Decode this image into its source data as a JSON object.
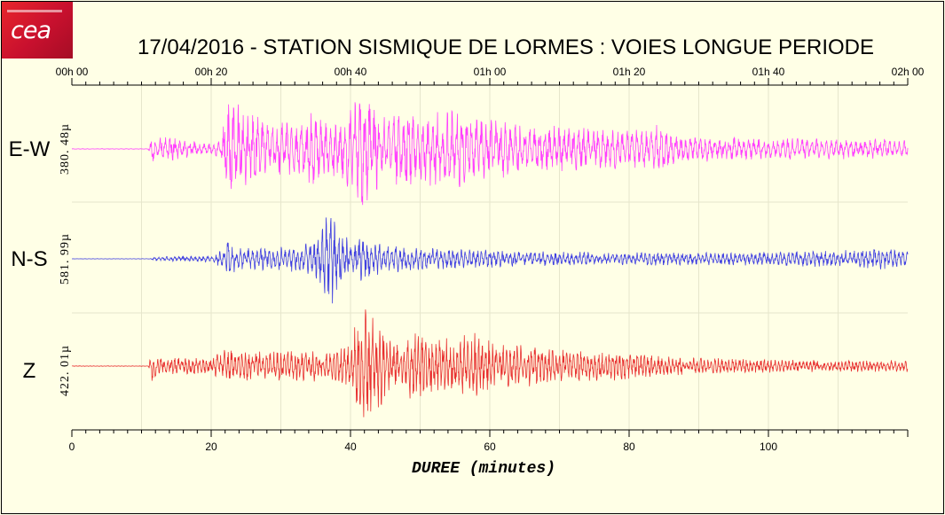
{
  "title": "17/04/2016  -  STATION SISMIQUE DE LORMES : VOIES LONGUE PERIODE",
  "logo": {
    "text": "cea",
    "icon": "cea-logo"
  },
  "colors": {
    "ew": "#ff40ff",
    "ns": "#4040e0",
    "z": "#e83030",
    "background": "#ffffe6",
    "grid": "#e6e6cc"
  },
  "chart_data": {
    "type": "line",
    "title": "17/04/2016  -  STATION SISMIQUE DE LORMES : VOIES LONGUE PERIODE",
    "xlabel": "DUREE (minutes)",
    "xlim": [
      0,
      120
    ],
    "x_bottom_ticks": [
      {
        "value": 0,
        "label": "0"
      },
      {
        "value": 20,
        "label": "20"
      },
      {
        "value": 40,
        "label": "40"
      },
      {
        "value": 60,
        "label": "60"
      },
      {
        "value": 80,
        "label": "80"
      },
      {
        "value": 100,
        "label": "100"
      }
    ],
    "x_top_ticks": [
      {
        "value": 0,
        "label": "00h 00"
      },
      {
        "value": 20,
        "label": "00h 20"
      },
      {
        "value": 40,
        "label": "00h 40"
      },
      {
        "value": 60,
        "label": "01h 00"
      },
      {
        "value": 80,
        "label": "01h 20"
      },
      {
        "value": 100,
        "label": "01h 40"
      },
      {
        "value": 120,
        "label": "02h 00"
      }
    ],
    "grid": true,
    "series": [
      {
        "name": "E-W",
        "amplitude_label": "380. 48µ",
        "color": "#ff40ff",
        "envelope": [
          [
            0,
            0.005
          ],
          [
            11,
            0.005
          ],
          [
            11.5,
            0.3
          ],
          [
            12,
            0.2
          ],
          [
            14,
            0.25
          ],
          [
            16,
            0.18
          ],
          [
            20,
            0.1
          ],
          [
            21.5,
            0.2
          ],
          [
            22,
            0.7
          ],
          [
            23,
            1.0
          ],
          [
            25,
            0.75
          ],
          [
            28,
            0.55
          ],
          [
            32,
            0.5
          ],
          [
            34,
            0.7
          ],
          [
            37,
            0.6
          ],
          [
            39,
            0.7
          ],
          [
            40.5,
            0.9
          ],
          [
            41.5,
            1.3
          ],
          [
            43,
            1.0
          ],
          [
            45,
            0.6
          ],
          [
            48,
            0.8
          ],
          [
            50,
            0.7
          ],
          [
            55,
            0.75
          ],
          [
            58,
            0.6
          ],
          [
            62,
            0.55
          ],
          [
            66,
            0.5
          ],
          [
            70,
            0.45
          ],
          [
            75,
            0.4
          ],
          [
            80,
            0.38
          ],
          [
            85,
            0.5
          ],
          [
            86,
            0.3
          ],
          [
            90,
            0.25
          ],
          [
            95,
            0.22
          ],
          [
            100,
            0.2
          ],
          [
            110,
            0.2
          ],
          [
            120,
            0.18
          ]
        ]
      },
      {
        "name": "N-S",
        "amplitude_label": "581. 99µ",
        "color": "#4040e0",
        "envelope": [
          [
            0,
            0.003
          ],
          [
            11,
            0.003
          ],
          [
            12,
            0.04
          ],
          [
            20,
            0.06
          ],
          [
            22,
            0.2
          ],
          [
            22.5,
            0.55
          ],
          [
            23.5,
            0.2
          ],
          [
            27,
            0.2
          ],
          [
            31,
            0.22
          ],
          [
            34,
            0.3
          ],
          [
            35,
            0.45
          ],
          [
            36.5,
            0.75
          ],
          [
            37.2,
            1.0
          ],
          [
            38.5,
            0.55
          ],
          [
            40,
            0.35
          ],
          [
            41.5,
            0.45
          ],
          [
            43,
            0.3
          ],
          [
            47,
            0.25
          ],
          [
            52,
            0.2
          ],
          [
            56,
            0.18
          ],
          [
            65,
            0.15
          ],
          [
            75,
            0.12
          ],
          [
            85,
            0.12
          ],
          [
            95,
            0.12
          ],
          [
            110,
            0.15
          ],
          [
            116,
            0.2
          ],
          [
            119,
            0.15
          ],
          [
            120,
            0.15
          ]
        ]
      },
      {
        "name": "Z",
        "amplitude_label": "422. 01µ",
        "color": "#e83030",
        "envelope": [
          [
            0,
            0.005
          ],
          [
            11,
            0.005
          ],
          [
            11.5,
            0.4
          ],
          [
            12.5,
            0.15
          ],
          [
            16,
            0.18
          ],
          [
            20,
            0.15
          ],
          [
            22,
            0.35
          ],
          [
            25,
            0.3
          ],
          [
            28,
            0.28
          ],
          [
            32,
            0.32
          ],
          [
            36,
            0.3
          ],
          [
            38,
            0.3
          ],
          [
            40,
            0.6
          ],
          [
            41,
            1.0
          ],
          [
            42,
            1.15
          ],
          [
            44,
            0.95
          ],
          [
            46,
            0.45
          ],
          [
            49,
            0.75
          ],
          [
            52,
            0.55
          ],
          [
            56,
            0.6
          ],
          [
            58,
            0.7
          ],
          [
            60,
            0.5
          ],
          [
            64,
            0.45
          ],
          [
            68,
            0.35
          ],
          [
            72,
            0.33
          ],
          [
            78,
            0.28
          ],
          [
            85,
            0.2
          ],
          [
            95,
            0.15
          ],
          [
            105,
            0.12
          ],
          [
            115,
            0.12
          ],
          [
            120,
            0.12
          ]
        ]
      }
    ]
  }
}
